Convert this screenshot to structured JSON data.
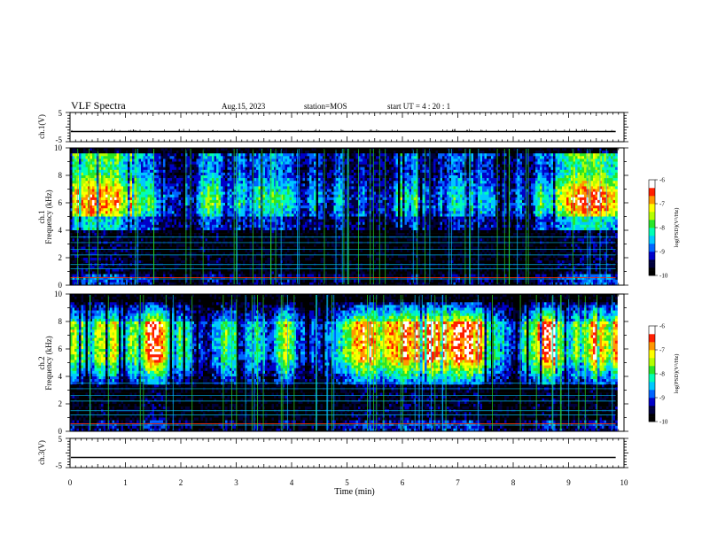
{
  "header": {
    "title": "VLF Spectra",
    "date": "Aug.15, 2023",
    "station": "station=MOS",
    "start": "start UT = 4 : 20 : 1"
  },
  "chart_data": [
    {
      "type": "line",
      "name": "ch1-waveform",
      "ylabel": "ch.1(V)",
      "y_ticks": [
        "5",
        "-5"
      ],
      "ylim": [
        -5,
        5
      ],
      "xlim": [
        0,
        10
      ],
      "trace_level": -1.5
    },
    {
      "type": "heatmap",
      "name": "ch1-spectrogram",
      "ylabel": "ch.1 Frequency (kHz)",
      "y_ticks": [
        "0",
        "2",
        "4",
        "6",
        "8",
        "10"
      ],
      "ylim": [
        0,
        10
      ],
      "xlim": [
        0,
        10
      ],
      "data_end_min": 9.85,
      "dominant_band_khz": [
        5,
        9.5
      ],
      "colorbar": {
        "label": "log(PSD)(V²/Hz)",
        "ticks": [
          "-6",
          "-7",
          "-8",
          "-9",
          "-10"
        ],
        "range": [
          -10,
          -6
        ]
      }
    },
    {
      "type": "heatmap",
      "name": "ch2-spectrogram",
      "ylabel": "ch.2 Frequency (kHz)",
      "y_ticks": [
        "0",
        "2",
        "4",
        "6",
        "8",
        "10"
      ],
      "ylim": [
        0,
        10
      ],
      "xlim": [
        0,
        10
      ],
      "data_end_min": 9.85,
      "dominant_band_khz": [
        5,
        8
      ],
      "colorbar": {
        "label": "log(PSD)(V²/Hz)",
        "ticks": [
          "-6",
          "-7",
          "-8",
          "-9",
          "-10"
        ],
        "range": [
          -10,
          -6
        ]
      }
    },
    {
      "type": "line",
      "name": "ch3-waveform",
      "ylabel": "ch.3(V)",
      "y_ticks": [
        "5",
        "-5"
      ],
      "ylim": [
        -5,
        5
      ],
      "xlim": [
        0,
        10
      ],
      "trace_level": -1.5
    }
  ],
  "x_axis": {
    "label": "Time (min)",
    "ticks": [
      "0",
      "1",
      "2",
      "3",
      "4",
      "5",
      "6",
      "7",
      "8",
      "9",
      "10"
    ]
  },
  "colors": {
    "scale": [
      "#000000",
      "#00003c",
      "#0000c8",
      "#0064ff",
      "#00c8ff",
      "#00ffb4",
      "#28e628",
      "#b4ff00",
      "#ffff00",
      "#ff9600",
      "#ff1e00",
      "#ffffff"
    ]
  }
}
